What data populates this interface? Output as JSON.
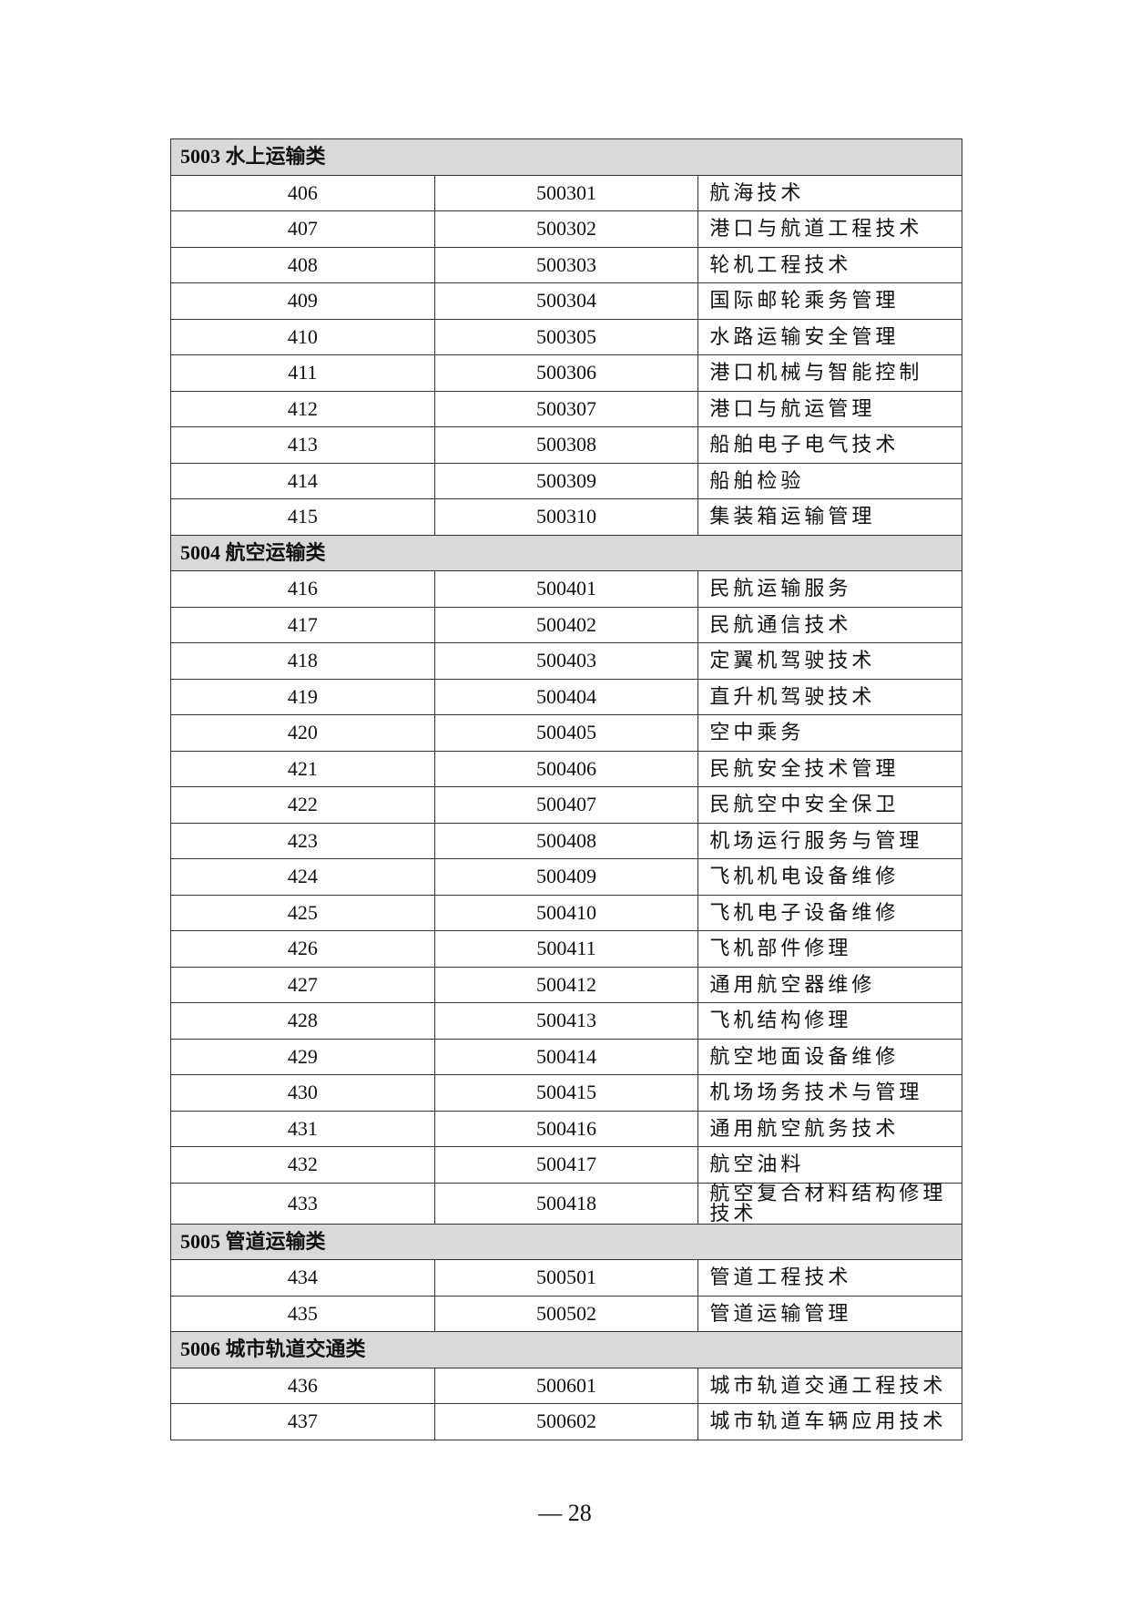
{
  "sections": [
    {
      "title": "5003 水上运输类",
      "rows": [
        [
          "406",
          "500301",
          "航海技术"
        ],
        [
          "407",
          "500302",
          "港口与航道工程技术"
        ],
        [
          "408",
          "500303",
          "轮机工程技术"
        ],
        [
          "409",
          "500304",
          "国际邮轮乘务管理"
        ],
        [
          "410",
          "500305",
          "水路运输安全管理"
        ],
        [
          "411",
          "500306",
          "港口机械与智能控制"
        ],
        [
          "412",
          "500307",
          "港口与航运管理"
        ],
        [
          "413",
          "500308",
          "船舶电子电气技术"
        ],
        [
          "414",
          "500309",
          "船舶检验"
        ],
        [
          "415",
          "500310",
          "集装箱运输管理"
        ]
      ]
    },
    {
      "title": "5004 航空运输类",
      "rows": [
        [
          "416",
          "500401",
          "民航运输服务"
        ],
        [
          "417",
          "500402",
          "民航通信技术"
        ],
        [
          "418",
          "500403",
          "定翼机驾驶技术"
        ],
        [
          "419",
          "500404",
          "直升机驾驶技术"
        ],
        [
          "420",
          "500405",
          "空中乘务"
        ],
        [
          "421",
          "500406",
          "民航安全技术管理"
        ],
        [
          "422",
          "500407",
          "民航空中安全保卫"
        ],
        [
          "423",
          "500408",
          "机场运行服务与管理"
        ],
        [
          "424",
          "500409",
          "飞机机电设备维修"
        ],
        [
          "425",
          "500410",
          "飞机电子设备维修"
        ],
        [
          "426",
          "500411",
          "飞机部件修理"
        ],
        [
          "427",
          "500412",
          "通用航空器维修"
        ],
        [
          "428",
          "500413",
          "飞机结构修理"
        ],
        [
          "429",
          "500414",
          "航空地面设备维修"
        ],
        [
          "430",
          "500415",
          "机场场务技术与管理"
        ],
        [
          "431",
          "500416",
          "通用航空航务技术"
        ],
        [
          "432",
          "500417",
          "航空油料"
        ],
        [
          "433",
          "500418",
          "航空复合材料结构修理技术"
        ]
      ]
    },
    {
      "title": "5005 管道运输类",
      "rows": [
        [
          "434",
          "500501",
          "管道工程技术"
        ],
        [
          "435",
          "500502",
          "管道运输管理"
        ]
      ]
    },
    {
      "title": "5006 城市轨道交通类",
      "rows": [
        [
          "436",
          "500601",
          "城市轨道交通工程技术"
        ],
        [
          "437",
          "500602",
          "城市轨道车辆应用技术"
        ]
      ]
    }
  ],
  "page_number": "— 28"
}
